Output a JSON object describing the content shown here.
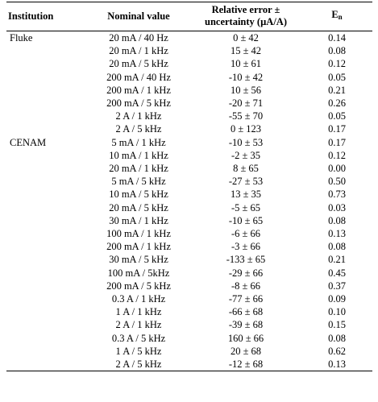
{
  "table": {
    "headers": {
      "institution": "Institution",
      "nominal": "Nominal value",
      "error_line1": "Relative error ±",
      "error_line2": "uncertainty (µA/A)",
      "en_main": "E",
      "en_sub": "n"
    },
    "rows": [
      {
        "institution": "Fluke",
        "nominal": "20 mA / 40 Hz",
        "error": "0 ± 42",
        "en": "0.14"
      },
      {
        "institution": "",
        "nominal": "20 mA / 1 kHz",
        "error": "15 ± 42",
        "en": "0.08"
      },
      {
        "institution": "",
        "nominal": "20 mA / 5 kHz",
        "error": "10 ± 61",
        "en": "0.12"
      },
      {
        "institution": "",
        "nominal": "200 mA / 40 Hz",
        "error": "-10 ± 42",
        "en": "0.05"
      },
      {
        "institution": "",
        "nominal": "200 mA / 1 kHz",
        "error": "10 ± 56",
        "en": "0.21"
      },
      {
        "institution": "",
        "nominal": "200 mA / 5 kHz",
        "error": "-20 ± 71",
        "en": "0.26"
      },
      {
        "institution": "",
        "nominal": "2 A / 1 kHz",
        "error": "-55 ± 70",
        "en": "0.05"
      },
      {
        "institution": "",
        "nominal": "2 A / 5 kHz",
        "error": "0 ± 123",
        "en": "0.17"
      },
      {
        "institution": "CENAM",
        "nominal": "5 mA / 1 kHz",
        "error": "-10 ± 53",
        "en": "0.17"
      },
      {
        "institution": "",
        "nominal": "10 mA / 1 kHz",
        "error": "-2 ± 35",
        "en": "0.12"
      },
      {
        "institution": "",
        "nominal": "20 mA / 1 kHz",
        "error": "8 ± 65",
        "en": "0.00"
      },
      {
        "institution": "",
        "nominal": "5 mA / 5 kHz",
        "error": "-27 ± 53",
        "en": "0.50"
      },
      {
        "institution": "",
        "nominal": "10 mA / 5 kHz",
        "error": "13 ± 35",
        "en": "0.73"
      },
      {
        "institution": "",
        "nominal": "20 mA / 5 kHz",
        "error": "-5 ± 65",
        "en": "0.03"
      },
      {
        "institution": "",
        "nominal": "30 mA / 1 kHz",
        "error": "-10 ± 65",
        "en": "0.08"
      },
      {
        "institution": "",
        "nominal": "100 mA / 1 kHz",
        "error": "-6 ± 66",
        "en": "0.13"
      },
      {
        "institution": "",
        "nominal": "200 mA / 1 kHz",
        "error": "-3 ± 66",
        "en": "0.08"
      },
      {
        "institution": "",
        "nominal": "30 mA / 5 kHz",
        "error": "-133 ± 65",
        "en": "0.21"
      },
      {
        "institution": "",
        "nominal": "100 mA / 5kHz",
        "error": "-29 ± 66",
        "en": "0.45"
      },
      {
        "institution": "",
        "nominal": "200 mA / 5 kHz",
        "error": "-8 ± 66",
        "en": "0.37"
      },
      {
        "institution": "",
        "nominal": "0.3 A / 1 kHz",
        "error": "-77 ± 66",
        "en": "0.09"
      },
      {
        "institution": "",
        "nominal": "1 A / 1 kHz",
        "error": "-66 ± 68",
        "en": "0.10"
      },
      {
        "institution": "",
        "nominal": "2 A / 1 kHz",
        "error": "-39 ± 68",
        "en": "0.15"
      },
      {
        "institution": "",
        "nominal": "0.3 A / 5 kHz",
        "error": "160 ± 66",
        "en": "0.08"
      },
      {
        "institution": "",
        "nominal": "1 A / 5 kHz",
        "error": "20 ± 68",
        "en": "0.62"
      },
      {
        "institution": "",
        "nominal": "2 A / 5 kHz",
        "error": "-12 ± 68",
        "en": "0.13"
      }
    ]
  }
}
